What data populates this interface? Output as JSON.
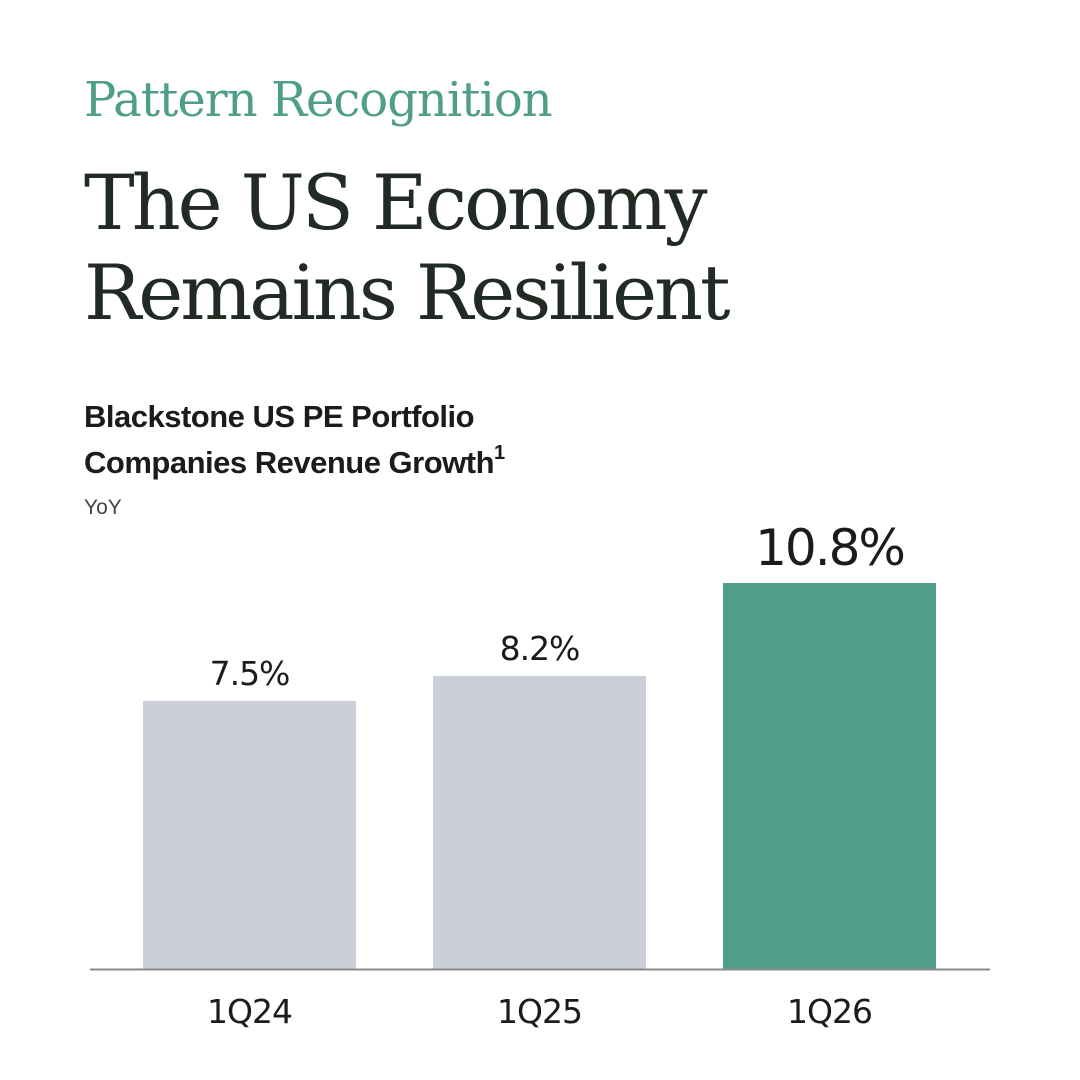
{
  "header": {
    "kicker": "Pattern Recognition",
    "headline_line1": "The US Economy",
    "headline_line2": "Remains Resilient"
  },
  "chart_data": {
    "type": "bar",
    "title_line1": "Blackstone US PE Portfolio",
    "title_line2": "Companies Revenue Growth",
    "title_footnote": "1",
    "subtitle": "YoY",
    "categories": [
      "1Q24",
      "1Q25",
      "1Q26"
    ],
    "values": [
      7.5,
      8.2,
      10.8
    ],
    "value_labels": [
      "7.5%",
      "8.2%",
      "10.8%"
    ],
    "ylim": [
      0,
      10.8
    ],
    "colors": [
      "#cbcfd8",
      "#cbcfd8",
      "#4e9e89"
    ],
    "axis_color": "#8a8a8a",
    "highlight_index": 2
  }
}
